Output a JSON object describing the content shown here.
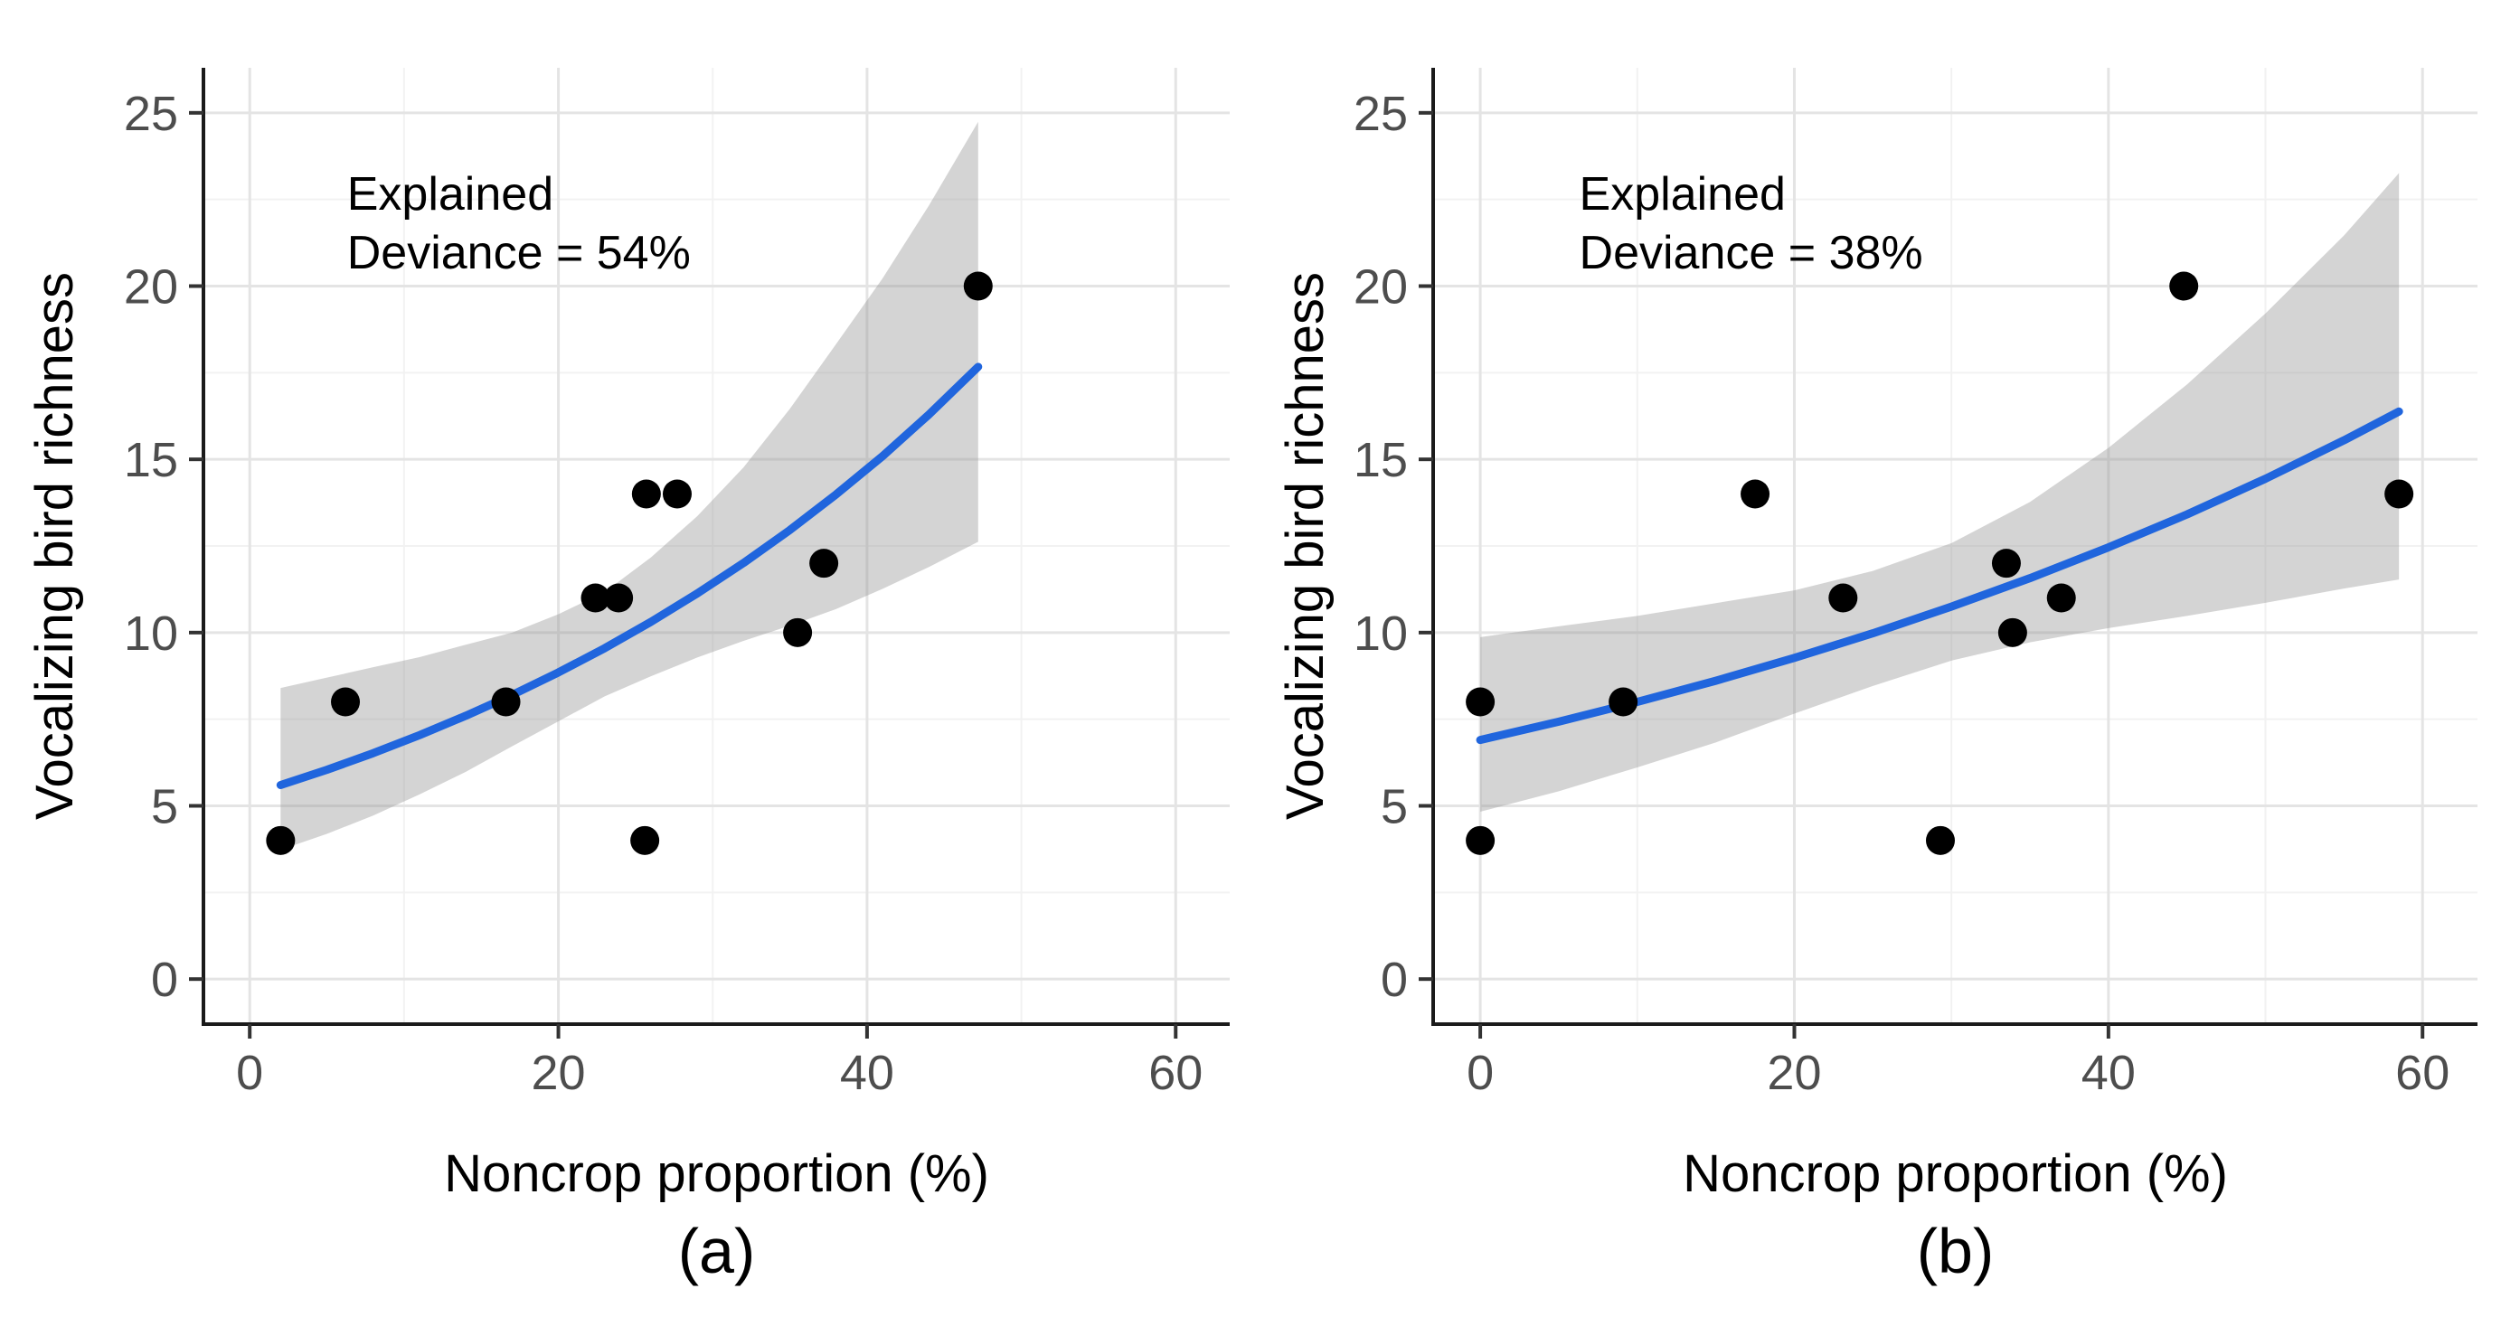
{
  "figure": {
    "background": "#FFFFFF",
    "caption_a": "(a)",
    "caption_b": "(b)"
  },
  "styles": {
    "smooth_line_color": "#2065DD",
    "ribbon_fill": "#999999",
    "ribbon_opacity": 0.42,
    "point_color": "#000000",
    "grid_major_color": "#E4E4E4",
    "grid_minor_color": "#F2F2F2",
    "axis_line_color": "#1A1A1A",
    "tick_color": "#333333",
    "tick_label_color": "#4D4D4D",
    "title_color": "#000000",
    "annotation_color": "#000000"
  },
  "chart_data": [
    {
      "id": "a",
      "type": "scatter",
      "panel_label": "(a)",
      "annotation_lines": [
        "Explained",
        "Deviance = 54%"
      ],
      "explained_deviance_pct": 54,
      "xlabel": "Noncrop proportion (%)",
      "ylabel": "Vocalizing bird richness",
      "xlim": [
        -3,
        63.5
      ],
      "ylim": [
        -1.3,
        26.3
      ],
      "xticks": [
        0,
        20,
        40,
        60
      ],
      "yticks": [
        0,
        5,
        10,
        15,
        20,
        25
      ],
      "xminor": [
        10,
        30,
        50
      ],
      "yminor": [
        2.5,
        7.5,
        12.5,
        17.5,
        22.5
      ],
      "grid": true,
      "legend": false,
      "points": [
        [
          2,
          4
        ],
        [
          6.2,
          8
        ],
        [
          16.6,
          8
        ],
        [
          22.4,
          11
        ],
        [
          23.9,
          11
        ],
        [
          25.6,
          4
        ],
        [
          25.7,
          14
        ],
        [
          27.7,
          14
        ],
        [
          35.5,
          10
        ],
        [
          37.2,
          12
        ],
        [
          47.2,
          20
        ]
      ],
      "smooth": {
        "x": [
          2,
          5,
          8,
          11,
          14,
          17,
          20,
          23,
          26,
          29,
          32,
          35,
          38,
          41,
          44,
          47.2
        ],
        "y": [
          5.6,
          6.04,
          6.52,
          7.04,
          7.6,
          8.2,
          8.85,
          9.55,
          10.31,
          11.13,
          12.01,
          12.96,
          13.99,
          15.09,
          16.29,
          17.67
        ],
        "lower": [
          3.73,
          4.19,
          4.72,
          5.33,
          5.98,
          6.72,
          7.44,
          8.16,
          8.74,
          9.28,
          9.76,
          10.2,
          10.68,
          11.26,
          11.89,
          12.62
        ],
        "upper": [
          8.4,
          8.7,
          9.0,
          9.29,
          9.65,
          10.0,
          10.53,
          11.17,
          12.17,
          13.36,
          14.77,
          16.46,
          18.33,
          20.22,
          22.32,
          24.74
        ]
      }
    },
    {
      "id": "b",
      "type": "scatter",
      "panel_label": "(b)",
      "annotation_lines": [
        "Explained",
        "Deviance = 38%"
      ],
      "explained_deviance_pct": 38,
      "xlabel": "Noncrop proportion (%)",
      "ylabel": "Vocalizing bird richness",
      "xlim": [
        -3,
        63.5
      ],
      "ylim": [
        -1.3,
        26.3
      ],
      "xticks": [
        0,
        20,
        40,
        60
      ],
      "yticks": [
        0,
        5,
        10,
        15,
        20,
        25
      ],
      "xminor": [
        10,
        30,
        50
      ],
      "yminor": [
        2.5,
        7.5,
        12.5,
        17.5,
        22.5
      ],
      "grid": true,
      "legend": false,
      "points": [
        [
          0,
          4
        ],
        [
          0,
          8
        ],
        [
          9.1,
          8
        ],
        [
          17.5,
          14
        ],
        [
          23.1,
          11
        ],
        [
          29.3,
          4
        ],
        [
          33.5,
          12
        ],
        [
          33.9,
          10
        ],
        [
          37,
          11
        ],
        [
          44.8,
          20
        ],
        [
          58.5,
          14
        ]
      ],
      "smooth": {
        "x": [
          0,
          5,
          10,
          15,
          20,
          25,
          30,
          35,
          40,
          45,
          50,
          55,
          58.5
        ],
        "y": [
          6.9,
          7.43,
          8.0,
          8.61,
          9.27,
          9.98,
          10.75,
          11.57,
          12.46,
          13.41,
          14.44,
          15.55,
          16.38
        ],
        "lower": [
          4.83,
          5.42,
          6.11,
          6.83,
          7.66,
          8.46,
          9.19,
          9.72,
          10.13,
          10.48,
          10.86,
          11.27,
          11.53
        ],
        "upper": [
          9.87,
          10.18,
          10.48,
          10.85,
          11.22,
          11.78,
          12.58,
          13.77,
          15.33,
          17.16,
          19.21,
          21.46,
          23.26
        ]
      }
    }
  ]
}
